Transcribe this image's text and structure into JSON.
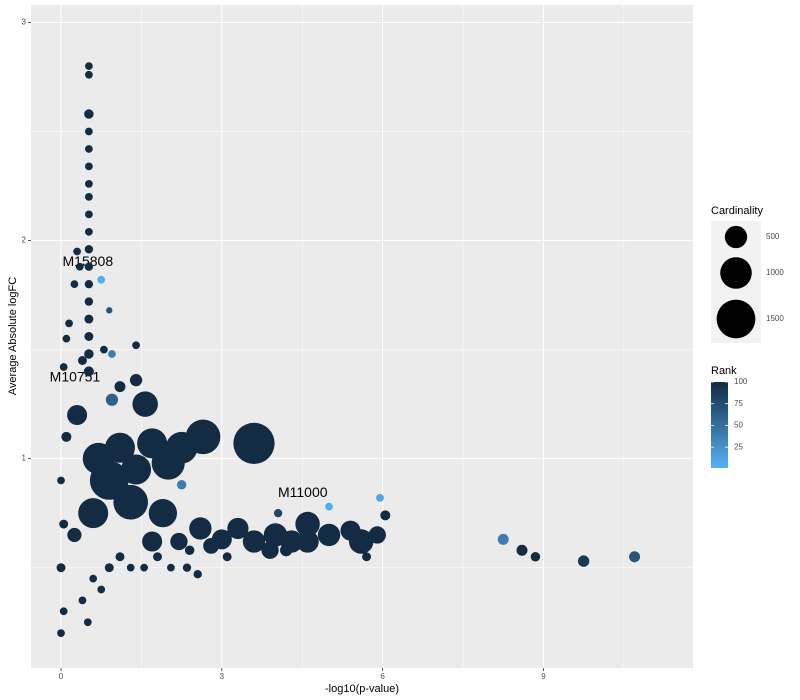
{
  "chart_data": {
    "type": "scatter",
    "x_label": "-log10(p-value)",
    "y_label": "Average Absolute logFC",
    "xlim": [
      -0.56,
      11.79
    ],
    "ylim": [
      0.04,
      3.08
    ],
    "xticks": [
      0,
      3,
      6,
      9
    ],
    "yticks": [
      1,
      2,
      3
    ],
    "xminor": [
      1.5,
      4.5,
      7.5,
      10.5
    ],
    "yminor": [
      0.5,
      1.5,
      2.5
    ],
    "grid": true,
    "x": [
      0.52,
      0.52,
      0.52,
      0.52,
      0.52,
      0.52,
      0.52,
      0.52,
      0.52,
      0.52,
      0.52,
      0.52,
      0.52,
      0.52,
      0.52,
      0.52,
      0.52,
      0.52,
      0.3,
      0.35,
      0.25,
      0.15,
      0.1,
      0.05,
      0.4,
      0.75,
      0.9,
      0.95,
      0.8,
      1.4,
      0.95,
      1.1,
      1.4,
      1.57,
      0.3,
      0.1,
      0.0,
      0.05,
      0.0,
      0.05,
      0.0,
      0.4,
      0.5,
      0.6,
      0.75,
      0.9,
      1.1,
      1.3,
      0.25,
      0.6,
      0.7,
      0.9,
      1.1,
      1.3,
      1.4,
      1.7,
      1.9,
      2.0,
      2.25,
      2.65,
      3.6,
      2.25,
      1.7,
      2.2,
      2.6,
      2.8,
      3.0,
      3.3,
      3.6,
      3.9,
      4.0,
      4.3,
      4.6,
      4.6,
      5.0,
      5.4,
      5.6,
      5.9,
      5.7,
      4.2,
      3.1,
      2.4,
      2.35,
      1.55,
      1.8,
      2.05,
      2.55,
      4.05,
      5.0,
      5.95,
      6.05,
      8.25,
      8.6,
      8.85,
      9.75,
      10.7
    ],
    "y": [
      2.8,
      2.76,
      2.58,
      2.5,
      2.42,
      2.34,
      2.26,
      2.2,
      2.12,
      2.04,
      1.96,
      1.88,
      1.8,
      1.72,
      1.64,
      1.56,
      1.48,
      1.4,
      1.95,
      1.88,
      1.8,
      1.62,
      1.55,
      1.42,
      1.45,
      1.82,
      1.68,
      1.48,
      1.5,
      1.52,
      1.27,
      1.33,
      1.36,
      1.25,
      1.2,
      1.1,
      0.9,
      0.7,
      0.5,
      0.3,
      0.2,
      0.35,
      0.25,
      0.45,
      0.4,
      0.5,
      0.55,
      0.5,
      0.65,
      0.75,
      1.0,
      0.9,
      1.05,
      0.8,
      0.95,
      1.07,
      0.75,
      0.98,
      1.05,
      1.1,
      1.07,
      0.88,
      0.62,
      0.62,
      0.68,
      0.6,
      0.63,
      0.68,
      0.62,
      0.58,
      0.65,
      0.62,
      0.7,
      0.62,
      0.65,
      0.67,
      0.62,
      0.65,
      0.55,
      0.58,
      0.55,
      0.58,
      0.5,
      0.5,
      0.55,
      0.5,
      0.47,
      0.75,
      0.78,
      0.82,
      0.74,
      0.63,
      0.58,
      0.55,
      0.53,
      0.55
    ],
    "size": [
      60,
      60,
      90,
      60,
      60,
      60,
      60,
      60,
      60,
      60,
      70,
      70,
      70,
      70,
      80,
      80,
      90,
      100,
      60,
      60,
      60,
      60,
      60,
      60,
      80,
      60,
      40,
      60,
      60,
      60,
      150,
      120,
      150,
      650,
      400,
      100,
      60,
      80,
      80,
      60,
      60,
      60,
      60,
      60,
      60,
      80,
      80,
      60,
      200,
      900,
      1000,
      1500,
      900,
      1200,
      900,
      900,
      800,
      1100,
      1000,
      1200,
      1700,
      90,
      400,
      300,
      500,
      250,
      400,
      450,
      500,
      300,
      550,
      500,
      600,
      500,
      500,
      400,
      600,
      300,
      80,
      150,
      80,
      90,
      70,
      60,
      80,
      60,
      70,
      70,
      60,
      60,
      100,
      120,
      120,
      90,
      130,
      120
    ],
    "rank": [
      100,
      100,
      100,
      100,
      100,
      100,
      100,
      100,
      100,
      100,
      100,
      100,
      100,
      100,
      100,
      100,
      100,
      100,
      100,
      100,
      100,
      100,
      100,
      100,
      100,
      5,
      70,
      40,
      100,
      100,
      60,
      100,
      100,
      100,
      100,
      100,
      100,
      100,
      100,
      100,
      100,
      100,
      100,
      100,
      100,
      100,
      100,
      100,
      100,
      100,
      100,
      100,
      100,
      100,
      100,
      100,
      100,
      100,
      100,
      100,
      100,
      40,
      100,
      100,
      100,
      100,
      100,
      100,
      100,
      100,
      100,
      100,
      100,
      100,
      100,
      100,
      100,
      100,
      100,
      100,
      100,
      100,
      100,
      100,
      100,
      100,
      100,
      80,
      5,
      10,
      100,
      40,
      100,
      100,
      90,
      70
    ],
    "annotations": [
      {
        "text": "M15808",
        "x": 0.5,
        "y": 1.9
      },
      {
        "text": "M10751",
        "x": 0.26,
        "y": 1.37
      },
      {
        "text": "M11000",
        "x": 4.51,
        "y": 0.84
      }
    ],
    "size_legend": {
      "title": "Cardinality",
      "values": [
        500,
        1000,
        1500
      ]
    },
    "color_legend": {
      "title": "Rank",
      "lim": [
        1,
        100
      ],
      "ticks": [
        25,
        50,
        75,
        100
      ],
      "low": "#56B1F7",
      "high": "#132B43"
    }
  }
}
